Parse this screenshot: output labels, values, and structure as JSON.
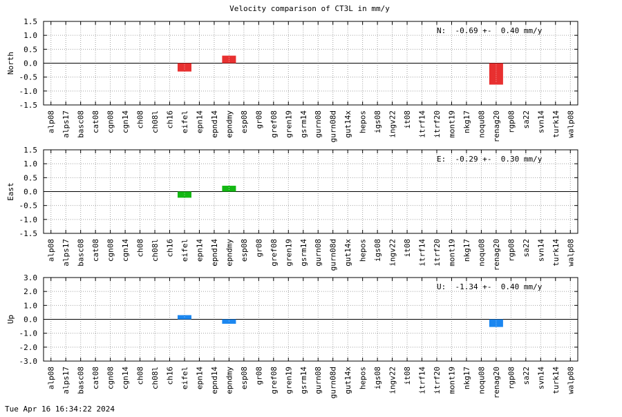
{
  "title": "Velocity comparison of CT3L in mm/y",
  "footer_timestamp": "Tue Apr 16 16:34:22 2024",
  "colors": {
    "north": "#e83030",
    "east": "#13b813",
    "up": "#1c87f0",
    "grid": "#a0a0a0"
  },
  "chart_data": [
    {
      "type": "bar",
      "ylabel": "North",
      "ylim": [
        -1.5,
        1.5
      ],
      "yticks": [
        "-1.5",
        "-1.0",
        "-0.5",
        "0.0",
        "0.5",
        "1.0",
        "1.5"
      ],
      "ytick_values": [
        -1.5,
        -1.0,
        -0.5,
        0.0,
        0.5,
        1.0,
        1.5
      ],
      "annotation": "N:  -0.69 +-  0.40 mm/y",
      "color": "#e83030",
      "grid": true,
      "bars": [
        {
          "category": "eifel",
          "value": -0.3
        },
        {
          "category": "epndmy",
          "value": 0.27
        },
        {
          "category": "renag20",
          "value": -0.77
        }
      ]
    },
    {
      "type": "bar",
      "ylabel": "East",
      "ylim": [
        -1.5,
        1.5
      ],
      "yticks": [
        "-1.5",
        "-1.0",
        "-0.5",
        "0.0",
        "0.5",
        "1.0",
        "1.5"
      ],
      "ytick_values": [
        -1.5,
        -1.0,
        -0.5,
        0.0,
        0.5,
        1.0,
        1.5
      ],
      "annotation": "E:  -0.29 +-  0.30 mm/y",
      "color": "#13b813",
      "grid": true,
      "bars": [
        {
          "category": "eifel",
          "value": -0.22
        },
        {
          "category": "epndmy",
          "value": 0.21
        }
      ]
    },
    {
      "type": "bar",
      "ylabel": "Up",
      "ylim": [
        -3.0,
        3.0
      ],
      "yticks": [
        "-3.0",
        "-2.0",
        "-1.0",
        "0.0",
        "1.0",
        "2.0",
        "3.0"
      ],
      "ytick_values": [
        -3.0,
        -2.0,
        -1.0,
        0.0,
        1.0,
        2.0,
        3.0
      ],
      "annotation": "U:  -1.34 +-  0.40 mm/y",
      "color": "#1c87f0",
      "grid": true,
      "bars": [
        {
          "category": "eifel",
          "value": 0.3
        },
        {
          "category": "epndmy",
          "value": -0.32
        },
        {
          "category": "renag20",
          "value": -0.55
        }
      ]
    }
  ],
  "categories": [
    "alp08",
    "alps17",
    "basc08",
    "cat08",
    "cgn08",
    "cgn14",
    "ch08",
    "ch08l",
    "ch16",
    "eifel",
    "epn14",
    "epnd14",
    "epndmy",
    "esp08",
    "gr08",
    "gref08",
    "gren19",
    "gsrm14",
    "gurn08",
    "gurn08d",
    "gut14x",
    "hepos",
    "igs08",
    "ingv22",
    "it08",
    "itrf14",
    "itrf20",
    "mont19",
    "nkg17",
    "noqu08",
    "renag20",
    "rgp08",
    "sa22",
    "svn14",
    "turk14",
    "walp08"
  ]
}
